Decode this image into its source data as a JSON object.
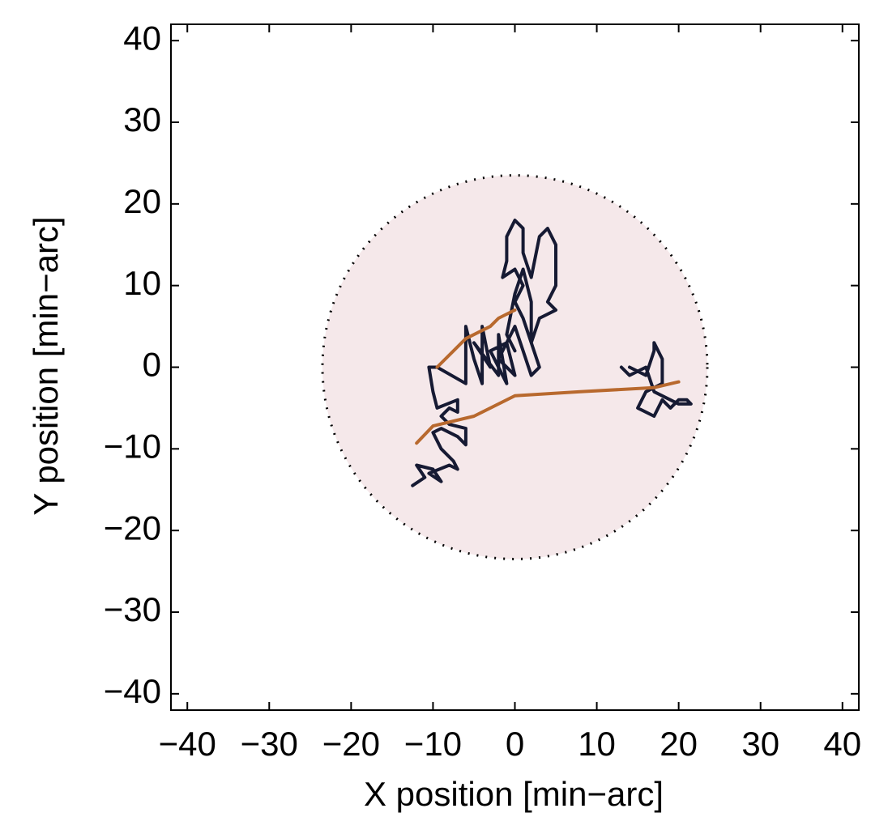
{
  "chart_data": {
    "type": "line",
    "xlabel": "X position [min−arc]",
    "ylabel": "Y position [min−arc]",
    "xlim": [
      -42,
      42
    ],
    "ylim": [
      -42,
      42
    ],
    "xticks": [
      {
        "value": -40,
        "label": "−40"
      },
      {
        "value": -30,
        "label": "−30"
      },
      {
        "value": -20,
        "label": "−20"
      },
      {
        "value": -10,
        "label": "−10"
      },
      0,
      10,
      20,
      30,
      40
    ],
    "yticks": [
      {
        "value": -40,
        "label": "−40"
      },
      {
        "value": -30,
        "label": "−30"
      },
      {
        "value": -20,
        "label": "−20"
      },
      {
        "value": -10,
        "label": "−10"
      },
      0,
      10,
      20,
      30,
      40
    ],
    "region": {
      "x": 0,
      "y": 0,
      "radius": 23.5,
      "color": "#f5e8ea"
    },
    "series": [
      {
        "color": "#161a33",
        "x": [
          -12.5,
          -11,
          -12,
          -10,
          -9,
          -10.5,
          -8,
          -7,
          -7.5,
          -9,
          -10,
          -9,
          -7,
          -6,
          -6,
          -8,
          -9,
          -8,
          -7,
          -7,
          -9.5,
          -10,
          -10.5,
          -9.5,
          -6,
          -6,
          -5,
          -4,
          -4,
          -3,
          -5,
          -2,
          -2,
          -1,
          -3,
          -1,
          0,
          -2,
          0,
          1,
          2,
          3,
          2,
          1,
          0,
          1,
          0,
          -1.5,
          -1,
          -1,
          0,
          1,
          1,
          2,
          3,
          4,
          5,
          5,
          4,
          5,
          3,
          2,
          2,
          1,
          0,
          -1,
          0,
          null,
          14,
          16,
          17,
          17,
          18,
          18,
          16,
          15,
          17,
          18,
          19,
          20,
          21,
          21.5,
          20,
          17,
          16,
          14,
          13
        ],
        "y": [
          -14.5,
          -13.5,
          -12,
          -12.5,
          -14,
          -13,
          -12,
          -12.5,
          -11.5,
          -10,
          -8,
          -7.5,
          -8.5,
          -9.5,
          -7.5,
          -7,
          -6,
          -5,
          -5.5,
          -4,
          -5,
          -3,
          0,
          0,
          -2,
          5,
          1,
          -2,
          5,
          0,
          3,
          -1,
          4,
          -2,
          2,
          3,
          -1,
          1,
          5,
          2,
          -1,
          0,
          3,
          6,
          8,
          10,
          12,
          11,
          13,
          16,
          18,
          17,
          14,
          11,
          16,
          17,
          15,
          10,
          8,
          7,
          6,
          3,
          8,
          12,
          9,
          4,
          2,
          null,
          0,
          -1,
          2,
          3,
          1,
          -2,
          -3,
          -5,
          -6,
          -4,
          -5,
          -4,
          -4,
          -4.5,
          -4.5,
          -3,
          0,
          -1,
          0
        ]
      },
      {
        "color": "#b8692e",
        "x": [
          -9.5,
          -6,
          -3,
          -2,
          0,
          null,
          -12,
          -10,
          -5,
          0,
          8,
          17,
          20
        ],
        "y": [
          0,
          3.5,
          5,
          6,
          7,
          null,
          -9.3,
          -7.2,
          -6,
          -3.5,
          -3,
          -2.5,
          -1.8
        ]
      }
    ]
  }
}
